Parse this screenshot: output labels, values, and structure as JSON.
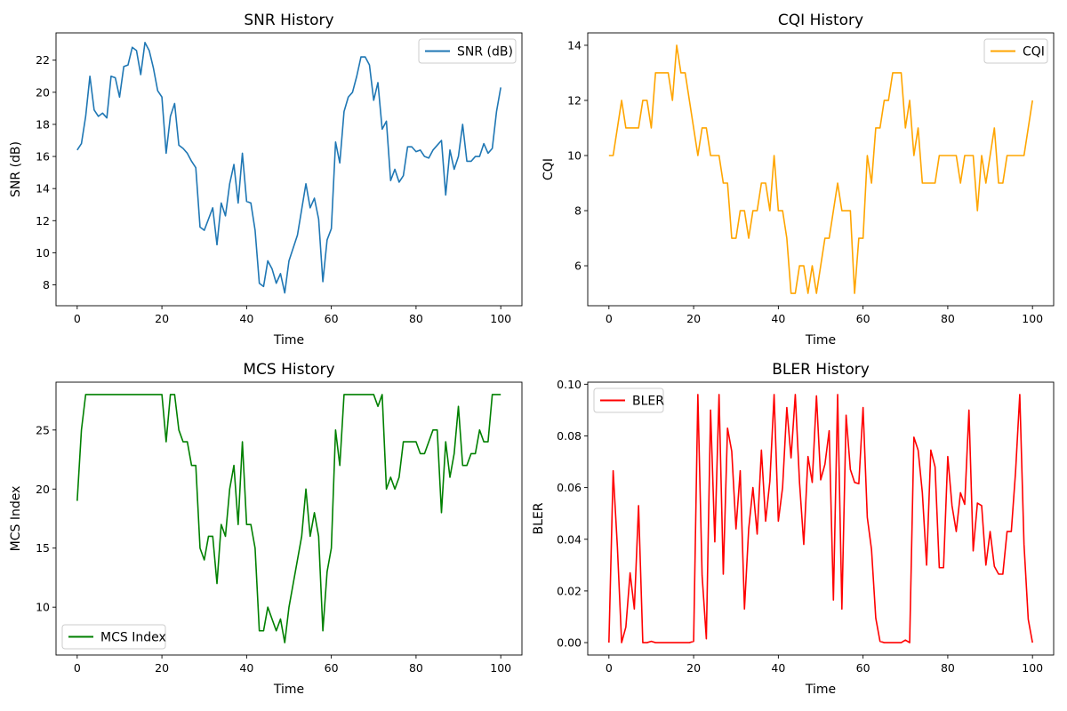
{
  "chart_data": [
    {
      "type": "line",
      "title": "SNR History",
      "xlabel": "Time",
      "ylabel": "SNR (dB)",
      "xlim": [
        -5,
        105
      ],
      "ylim": [
        6.7,
        23.7
      ],
      "xticks": [
        0,
        20,
        40,
        60,
        80,
        100
      ],
      "yticks": [
        8,
        10,
        12,
        14,
        16,
        18,
        20,
        22
      ],
      "legend": "top-right",
      "grid": false,
      "series": [
        {
          "name": "SNR (dB)",
          "color": "#1f77b4",
          "x": [
            0,
            1,
            2,
            3,
            4,
            5,
            6,
            7,
            8,
            9,
            10,
            11,
            12,
            13,
            14,
            15,
            16,
            17,
            18,
            19,
            20,
            21,
            22,
            23,
            24,
            25,
            26,
            27,
            28,
            29,
            30,
            31,
            32,
            33,
            34,
            35,
            36,
            37,
            38,
            39,
            40,
            41,
            42,
            43,
            44,
            45,
            46,
            47,
            48,
            49,
            50,
            51,
            52,
            53,
            54,
            55,
            56,
            57,
            58,
            59,
            60,
            61,
            62,
            63,
            64,
            65,
            66,
            67,
            68,
            69,
            70,
            71,
            72,
            73,
            74,
            75,
            76,
            77,
            78,
            79,
            80,
            81,
            82,
            83,
            84,
            85,
            86,
            87,
            88,
            89,
            90,
            91,
            92,
            93,
            94,
            95,
            96,
            97,
            98,
            99,
            100
          ],
          "values": [
            16.4,
            16.8,
            18.5,
            21.0,
            18.9,
            18.5,
            18.7,
            18.4,
            21.0,
            20.9,
            19.7,
            21.6,
            21.7,
            22.8,
            22.6,
            21.1,
            23.1,
            22.6,
            21.5,
            20.1,
            19.7,
            16.2,
            18.5,
            19.3,
            16.7,
            16.5,
            16.2,
            15.7,
            15.3,
            11.6,
            11.4,
            12.1,
            12.8,
            10.5,
            13.1,
            12.3,
            14.3,
            15.5,
            13.1,
            16.2,
            13.2,
            13.1,
            11.4,
            8.1,
            7.9,
            9.5,
            9.0,
            8.1,
            8.7,
            7.5,
            9.5,
            10.3,
            11.1,
            12.7,
            14.3,
            12.8,
            13.4,
            12.1,
            8.2,
            10.8,
            11.5,
            16.9,
            15.6,
            18.8,
            19.7,
            20.0,
            21.0,
            22.2,
            22.2,
            21.7,
            19.5,
            20.6,
            17.7,
            18.2,
            14.5,
            15.2,
            14.4,
            14.8,
            16.6,
            16.6,
            16.3,
            16.4,
            16.0,
            15.9,
            16.4,
            16.7,
            17.0,
            13.6,
            16.4,
            15.2,
            16.0,
            18.0,
            15.7,
            15.7,
            16.0,
            16.0,
            16.8,
            16.2,
            16.5,
            18.8,
            20.3
          ]
        }
      ]
    },
    {
      "type": "line",
      "title": "CQI History",
      "xlabel": "Time",
      "ylabel": "CQI",
      "xlim": [
        -5,
        105
      ],
      "ylim": [
        4.55,
        14.45
      ],
      "xticks": [
        0,
        20,
        40,
        60,
        80,
        100
      ],
      "yticks": [
        6,
        8,
        10,
        12,
        14
      ],
      "legend": "top-right",
      "grid": false,
      "series": [
        {
          "name": "CQI",
          "color": "#ffa500",
          "x": [
            0,
            1,
            2,
            3,
            4,
            5,
            6,
            7,
            8,
            9,
            10,
            11,
            12,
            13,
            14,
            15,
            16,
            17,
            18,
            19,
            20,
            21,
            22,
            23,
            24,
            25,
            26,
            27,
            28,
            29,
            30,
            31,
            32,
            33,
            34,
            35,
            36,
            37,
            38,
            39,
            40,
            41,
            42,
            43,
            44,
            45,
            46,
            47,
            48,
            49,
            50,
            51,
            52,
            53,
            54,
            55,
            56,
            57,
            58,
            59,
            60,
            61,
            62,
            63,
            64,
            65,
            66,
            67,
            68,
            69,
            70,
            71,
            72,
            73,
            74,
            75,
            76,
            77,
            78,
            79,
            80,
            81,
            82,
            83,
            84,
            85,
            86,
            87,
            88,
            89,
            90,
            91,
            92,
            93,
            94,
            95,
            96,
            97,
            98,
            99,
            100
          ],
          "values": [
            10,
            10,
            11,
            12,
            11,
            11,
            11,
            11,
            12,
            12,
            11,
            13,
            13,
            13,
            13,
            12,
            14,
            13,
            13,
            12,
            11,
            10,
            11,
            11,
            10,
            10,
            10,
            9,
            9,
            7,
            7,
            8,
            8,
            7,
            8,
            8,
            9,
            9,
            8,
            10,
            8,
            8,
            7,
            5,
            5,
            6,
            6,
            5,
            6,
            5,
            6,
            7,
            7,
            8,
            9,
            8,
            8,
            8,
            5,
            7,
            7,
            10,
            9,
            11,
            11,
            12,
            12,
            13,
            13,
            13,
            11,
            12,
            10,
            11,
            9,
            9,
            9,
            9,
            10,
            10,
            10,
            10,
            10,
            9,
            10,
            10,
            10,
            8,
            10,
            9,
            10,
            11,
            9,
            9,
            10,
            10,
            10,
            10,
            10,
            11,
            12
          ]
        }
      ]
    },
    {
      "type": "line",
      "title": "MCS History",
      "xlabel": "Time",
      "ylabel": "MCS Index",
      "xlim": [
        -5,
        105
      ],
      "ylim": [
        5.95,
        29.05
      ],
      "xticks": [
        0,
        20,
        40,
        60,
        80,
        100
      ],
      "yticks": [
        10,
        15,
        20,
        25
      ],
      "legend": "bottom-left",
      "grid": false,
      "series": [
        {
          "name": "MCS Index",
          "color": "#008000",
          "x": [
            0,
            1,
            2,
            3,
            4,
            5,
            6,
            7,
            8,
            9,
            10,
            11,
            12,
            13,
            14,
            15,
            16,
            17,
            18,
            19,
            20,
            21,
            22,
            23,
            24,
            25,
            26,
            27,
            28,
            29,
            30,
            31,
            32,
            33,
            34,
            35,
            36,
            37,
            38,
            39,
            40,
            41,
            42,
            43,
            44,
            45,
            46,
            47,
            48,
            49,
            50,
            51,
            52,
            53,
            54,
            55,
            56,
            57,
            58,
            59,
            60,
            61,
            62,
            63,
            64,
            65,
            66,
            67,
            68,
            69,
            70,
            71,
            72,
            73,
            74,
            75,
            76,
            77,
            78,
            79,
            80,
            81,
            82,
            83,
            84,
            85,
            86,
            87,
            88,
            89,
            90,
            91,
            92,
            93,
            94,
            95,
            96,
            97,
            98,
            99,
            100
          ],
          "values": [
            19,
            25,
            28,
            28,
            28,
            28,
            28,
            28,
            28,
            28,
            28,
            28,
            28,
            28,
            28,
            28,
            28,
            28,
            28,
            28,
            28,
            24,
            28,
            28,
            25,
            24,
            24,
            22,
            22,
            15,
            14,
            16,
            16,
            12,
            17,
            16,
            20,
            22,
            17,
            24,
            17,
            17,
            15,
            8,
            8,
            10,
            9,
            8,
            9,
            7,
            10,
            12,
            14,
            16,
            20,
            16,
            18,
            16,
            8,
            13,
            15,
            25,
            22,
            28,
            28,
            28,
            28,
            28,
            28,
            28,
            28,
            27,
            28,
            20,
            21,
            20,
            21,
            24,
            24,
            24,
            24,
            23,
            23,
            24,
            25,
            25,
            18,
            24,
            21,
            23,
            27,
            22,
            22,
            23,
            23,
            25,
            24,
            24,
            28,
            28,
            28
          ]
        }
      ]
    },
    {
      "type": "line",
      "title": "BLER History",
      "xlabel": "Time",
      "ylabel": "BLER",
      "xlim": [
        -5,
        105
      ],
      "ylim": [
        -0.0048,
        0.1008
      ],
      "xticks": [
        0,
        20,
        40,
        60,
        80,
        100
      ],
      "yticks": [
        0.0,
        0.02,
        0.04,
        0.06,
        0.08,
        0.1
      ],
      "legend": "top-left",
      "grid": false,
      "series": [
        {
          "name": "BLER",
          "color": "#ff0000",
          "x": [
            0,
            1,
            2,
            3,
            4,
            5,
            6,
            7,
            8,
            9,
            10,
            11,
            12,
            13,
            14,
            15,
            16,
            17,
            18,
            19,
            20,
            21,
            22,
            23,
            24,
            25,
            26,
            27,
            28,
            29,
            30,
            31,
            32,
            33,
            34,
            35,
            36,
            37,
            38,
            39,
            40,
            41,
            42,
            43,
            44,
            45,
            46,
            47,
            48,
            49,
            50,
            51,
            52,
            53,
            54,
            55,
            56,
            57,
            58,
            59,
            60,
            61,
            62,
            63,
            64,
            65,
            66,
            67,
            68,
            69,
            70,
            71,
            72,
            73,
            74,
            75,
            76,
            77,
            78,
            79,
            80,
            81,
            82,
            83,
            84,
            85,
            86,
            87,
            88,
            89,
            90,
            91,
            92,
            93,
            94,
            95,
            96,
            97,
            98,
            99,
            100
          ],
          "values": [
            0.0,
            0.0665,
            0.037,
            0.0,
            0.006,
            0.027,
            0.013,
            0.053,
            0.0,
            0.0,
            0.0005,
            0.0,
            0.0,
            0.0,
            0.0,
            0.0,
            0.0,
            0.0,
            0.0,
            0.0,
            0.0005,
            0.096,
            0.026,
            0.0015,
            0.09,
            0.039,
            0.096,
            0.0265,
            0.083,
            0.074,
            0.044,
            0.0665,
            0.013,
            0.044,
            0.06,
            0.042,
            0.0745,
            0.047,
            0.0625,
            0.096,
            0.047,
            0.06,
            0.091,
            0.0715,
            0.096,
            0.062,
            0.038,
            0.072,
            0.062,
            0.0955,
            0.063,
            0.069,
            0.082,
            0.0165,
            0.096,
            0.013,
            0.088,
            0.067,
            0.062,
            0.0615,
            0.091,
            0.0485,
            0.036,
            0.0095,
            0.0005,
            0.0,
            0.0,
            0.0,
            0.0,
            0.0,
            0.001,
            0.0,
            0.0795,
            0.0745,
            0.058,
            0.03,
            0.0745,
            0.068,
            0.029,
            0.029,
            0.072,
            0.053,
            0.043,
            0.058,
            0.0535,
            0.09,
            0.0355,
            0.054,
            0.053,
            0.03,
            0.043,
            0.0295,
            0.0265,
            0.0265,
            0.043,
            0.043,
            0.066,
            0.096,
            0.038,
            0.009,
            0.0
          ]
        }
      ]
    }
  ]
}
